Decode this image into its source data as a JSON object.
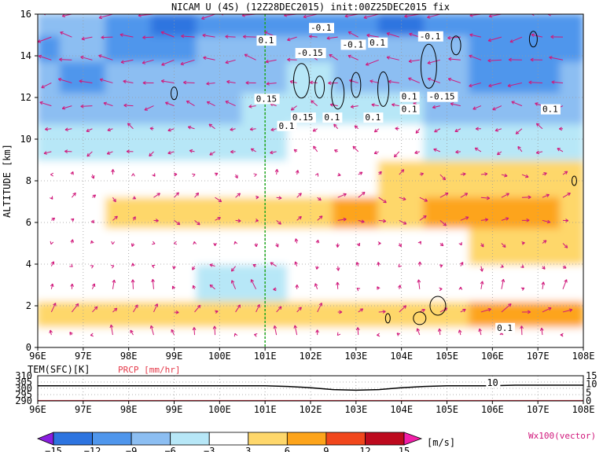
{
  "chart_data": [
    {
      "type": "heatmap",
      "title": "NICAM U (4S) (12Z28DEC2015) init:00Z25DEC2015 fix",
      "ylabel": "ALTITUDE [km]",
      "xlabel": "",
      "xlim": [
        96,
        108
      ],
      "ylim": [
        0,
        16
      ],
      "x_ticks": [
        "96E",
        "97E",
        "98E",
        "99E",
        "100E",
        "101E",
        "102E",
        "103E",
        "104E",
        "105E",
        "106E",
        "107E",
        "108E"
      ],
      "y_ticks": [
        "0",
        "2",
        "4",
        "6",
        "8",
        "10",
        "12",
        "14",
        "16"
      ],
      "grid": "dotted",
      "marker_longitude": 101,
      "colorbar": {
        "levels": [
          "-15",
          "-12",
          "-9",
          "-6",
          "-3",
          "3",
          "6",
          "9",
          "12",
          "15"
        ],
        "colors": [
          "#8a1ee0",
          "#2d74e0",
          "#4f96ec",
          "#8cbef2",
          "#b7e7f7",
          "#ffffff",
          "#fed76b",
          "#fda41b",
          "#f1471c",
          "#bd0a1e",
          "#f21fa8"
        ],
        "unit": "[m/s]"
      },
      "vector_label": "Wx100(vector)",
      "u_wind_samples": {
        "lon": [
          96,
          97,
          98,
          99,
          100,
          101,
          102,
          103,
          104,
          105,
          106,
          107,
          108
        ],
        "alt": [
          0.5,
          1.5,
          3,
          5,
          6.5,
          8,
          10,
          11.5,
          13,
          14.5,
          15.5
        ],
        "u": [
          [
            -1,
            -1,
            -1,
            -1,
            -1,
            -1,
            -1,
            -1,
            -1,
            -1,
            -1,
            -1,
            -1
          ],
          [
            4,
            4,
            3.5,
            3.5,
            3.5,
            3.5,
            3.5,
            4,
            5,
            5,
            7,
            7,
            7
          ],
          [
            1,
            1,
            0,
            -1,
            -3.5,
            -3.5,
            -1,
            0,
            0,
            1,
            2,
            2,
            2
          ],
          [
            0,
            0,
            0,
            0,
            0,
            0,
            0,
            0,
            1,
            2,
            3,
            3,
            4
          ],
          [
            2,
            2,
            3,
            4,
            4,
            3,
            4,
            6,
            5,
            6,
            6.5,
            6,
            5
          ],
          [
            0,
            0,
            1,
            1,
            1,
            1,
            1,
            2,
            3,
            3,
            4,
            4,
            4
          ],
          [
            -5,
            -5,
            -5,
            -4,
            -4,
            -4,
            -3,
            -3,
            -3,
            -4,
            -4,
            -4,
            -4
          ],
          [
            -8,
            -8,
            -8,
            -7,
            -7,
            -6,
            -5,
            -5,
            -5,
            -7,
            -7,
            -7,
            -7
          ],
          [
            -9,
            -10,
            -9,
            -9,
            -8,
            -7,
            -6,
            -7,
            -8,
            -9,
            -10,
            -10,
            -9
          ],
          [
            -10,
            -9,
            -10,
            -10,
            -9,
            -9,
            -7,
            -8,
            -9,
            -9,
            -10,
            -10,
            -10
          ],
          [
            -7,
            -8,
            -10,
            -13,
            -11,
            -10,
            -10,
            -11,
            -13,
            -11,
            -10,
            -10,
            -11
          ]
        ]
      },
      "contour_labels": [
        "0.1",
        "-0.1",
        "-0.15",
        "-0.1",
        "0.1",
        "-0.1",
        "0.15",
        "0.15",
        "0.1",
        "0.1",
        "0.1",
        "-0.15",
        "0.1",
        "0.1",
        "0.1",
        "0.1"
      ],
      "lon_marker_label": "0.1"
    },
    {
      "type": "line",
      "title": "",
      "ylabel_left": "TEM(SFC)[K]",
      "ylabel_right": "PRCP [mm/hr]",
      "xlim": [
        96,
        108
      ],
      "y_left_ticks": [
        "310",
        "305",
        "300",
        "295",
        "290"
      ],
      "y_left_lim": [
        290,
        310
      ],
      "y_right_ticks": [
        "15",
        "10",
        "5",
        "0"
      ],
      "y_right_lim": [
        0,
        15
      ],
      "x_ticks": [
        "96E",
        "97E",
        "98E",
        "99E",
        "100E",
        "101E",
        "102E",
        "103E",
        "104E",
        "105E",
        "106E",
        "107E",
        "108E"
      ],
      "series": [
        {
          "name": "TEM(SFC)[K]",
          "color": "#000000",
          "x": [
            96,
            97,
            98,
            99,
            100,
            101,
            101.5,
            102,
            102.5,
            103,
            103.5,
            104,
            104.5,
            105,
            105.5,
            106,
            106.5,
            107,
            107.5,
            108
          ],
          "y": [
            302,
            302,
            302,
            302,
            302,
            302,
            301.5,
            300.5,
            299,
            298.5,
            299,
            300.5,
            301.5,
            302,
            302,
            302,
            302.5,
            302.5,
            302.5,
            302.5
          ]
        },
        {
          "name": "PRCP [mm/hr]",
          "color": "#e53a4a",
          "x": [
            96,
            108
          ],
          "y": [
            0,
            0
          ]
        }
      ],
      "annotations": [
        "10",
        "10"
      ]
    }
  ]
}
